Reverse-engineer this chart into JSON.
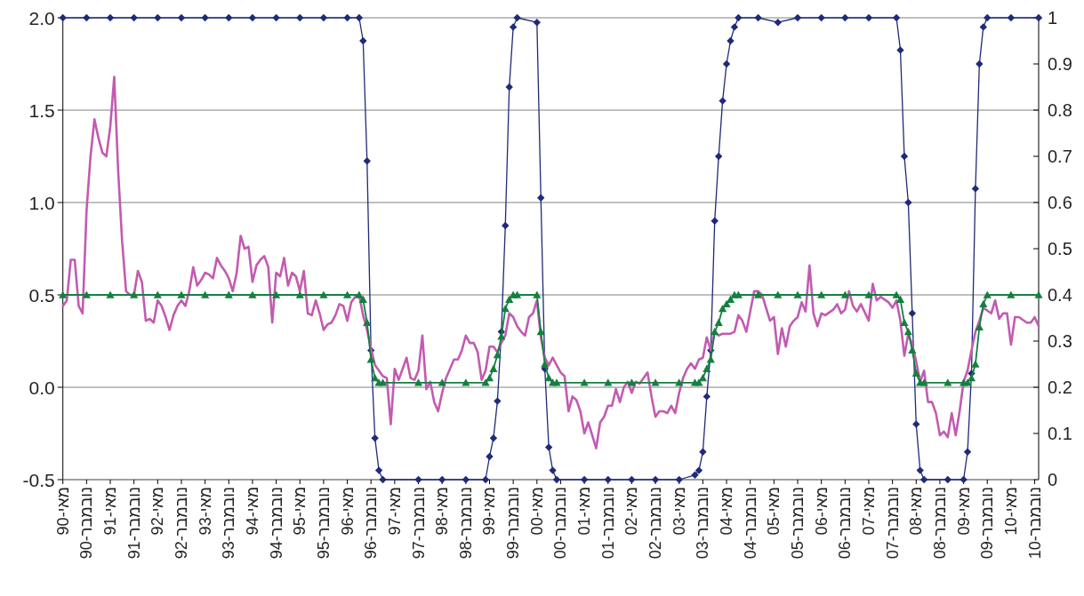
{
  "chart_data": {
    "type": "line",
    "xlim": [
      "1990-05",
      "2010-12"
    ],
    "xticks": [
      {
        "value": "1990-05",
        "label": "מאי-90"
      },
      {
        "value": "1990-11",
        "label": "נובמבר-90"
      },
      {
        "value": "1991-05",
        "label": "מאי-91"
      },
      {
        "value": "1991-11",
        "label": "נובמבר-91"
      },
      {
        "value": "1992-05",
        "label": "מאי-92"
      },
      {
        "value": "1992-11",
        "label": "נובמבר-92"
      },
      {
        "value": "1993-05",
        "label": "מאי-93"
      },
      {
        "value": "1993-11",
        "label": "נובמבר-93"
      },
      {
        "value": "1994-05",
        "label": "מאי-94"
      },
      {
        "value": "1994-11",
        "label": "נובמבר-94"
      },
      {
        "value": "1995-05",
        "label": "מאי-95"
      },
      {
        "value": "1995-11",
        "label": "נובמבר-95"
      },
      {
        "value": "1996-05",
        "label": "מאי-96"
      },
      {
        "value": "1996-11",
        "label": "נובמבר-96"
      },
      {
        "value": "1997-05",
        "label": "מאי-97"
      },
      {
        "value": "1997-11",
        "label": "נובמבר-97"
      },
      {
        "value": "1998-05",
        "label": "מאי-98"
      },
      {
        "value": "1998-11",
        "label": "נובמבר-98"
      },
      {
        "value": "1999-05",
        "label": "מאי-99"
      },
      {
        "value": "1999-11",
        "label": "נובמבר-99"
      },
      {
        "value": "2000-05",
        "label": "מאי-00"
      },
      {
        "value": "2000-11",
        "label": "נובמבר-00"
      },
      {
        "value": "2001-05",
        "label": "מאי-01"
      },
      {
        "value": "2001-11",
        "label": "נובמבר-01"
      },
      {
        "value": "2002-05",
        "label": "מאי-02"
      },
      {
        "value": "2002-11",
        "label": "נובמבר-02"
      },
      {
        "value": "2003-05",
        "label": "מאי-03"
      },
      {
        "value": "2003-11",
        "label": "נובמבר-03"
      },
      {
        "value": "2004-05",
        "label": "מאי-04"
      },
      {
        "value": "2004-11",
        "label": "נובמבר-04"
      },
      {
        "value": "2005-05",
        "label": "מאי-05"
      },
      {
        "value": "2005-11",
        "label": "נובמבר-05"
      },
      {
        "value": "2006-05",
        "label": "מאי-06"
      },
      {
        "value": "2006-11",
        "label": "נובמבר-06"
      },
      {
        "value": "2007-05",
        "label": "מאי-07"
      },
      {
        "value": "2007-11",
        "label": "נובמבר-07"
      },
      {
        "value": "2008-05",
        "label": "מאי-08"
      },
      {
        "value": "2008-11",
        "label": "נובמבר-08"
      },
      {
        "value": "2009-05",
        "label": "מאי-09"
      },
      {
        "value": "2009-11",
        "label": "נובמבר-09"
      },
      {
        "value": "2010-05",
        "label": "מאי-10"
      },
      {
        "value": "2010-11",
        "label": "נובמבר-10"
      }
    ],
    "ylim": [
      -0.5,
      2.0
    ],
    "yticks": [
      {
        "value": -0.5,
        "label": "-0.5"
      },
      {
        "value": 0,
        "label": "0.0"
      },
      0.5,
      {
        "value": 1,
        "label": "1.0"
      },
      1.5,
      {
        "value": 2,
        "label": "2.0"
      }
    ],
    "y2lim": [
      0,
      1
    ],
    "y2ticks": [
      0,
      0.1,
      0.2,
      0.3,
      0.4,
      0.5,
      0.6,
      0.7,
      0.8,
      0.9,
      1
    ],
    "grid": "y",
    "line_style": "solid",
    "series": [
      {
        "color": "#1f2a78",
        "axis": "y2",
        "marker": "diamond",
        "x": [
          "1990-05",
          "1990-11",
          "1991-05",
          "1991-11",
          "1992-05",
          "1992-11",
          "1993-05",
          "1993-11",
          "1994-05",
          "1994-11",
          "1995-05",
          "1995-11",
          "1996-05",
          "1996-08",
          "1996-09",
          "1996-10",
          "1996-11",
          "1996-12",
          "1997-01",
          "1997-02",
          "1997-11",
          "1998-05",
          "1998-11",
          "1999-04",
          "1999-05",
          "1999-06",
          "1999-07",
          "1999-08",
          "1999-09",
          "1999-10",
          "1999-11",
          "1999-12",
          "2000-05",
          "2000-06",
          "2000-07",
          "2000-08",
          "2000-09",
          "2000-10",
          "2001-05",
          "2001-11",
          "2002-05",
          "2002-11",
          "2003-05",
          "2003-09",
          "2003-10",
          "2003-11",
          "2003-12",
          "2004-01",
          "2004-02",
          "2004-03",
          "2004-04",
          "2004-05",
          "2004-06",
          "2004-07",
          "2004-08",
          "2005-01",
          "2005-06",
          "2005-11",
          "2006-05",
          "2006-11",
          "2007-05",
          "2007-12",
          "2008-01",
          "2008-02",
          "2008-03",
          "2008-04",
          "2008-05",
          "2008-06",
          "2008-07",
          "2009-01",
          "2009-05",
          "2009-06",
          "2009-07",
          "2009-08",
          "2009-09",
          "2009-10",
          "2009-11",
          "2010-05",
          "2010-12"
        ],
        "values": [
          1,
          1,
          1,
          1,
          1,
          1,
          1,
          1,
          1,
          1,
          1,
          1,
          1,
          1,
          0.95,
          0.69,
          0.28,
          0.09,
          0.02,
          0,
          0,
          0,
          0,
          0,
          0.05,
          0.09,
          0.17,
          0.32,
          0.55,
          0.85,
          0.98,
          1,
          0.99,
          0.61,
          0.24,
          0.07,
          0.02,
          0,
          0,
          0,
          0,
          0,
          0,
          0.01,
          0.02,
          0.06,
          0.18,
          0.28,
          0.56,
          0.7,
          0.82,
          0.9,
          0.95,
          0.98,
          1,
          1,
          0.99,
          1,
          1,
          1,
          1,
          1,
          0.93,
          0.7,
          0.6,
          0.36,
          0.12,
          0.02,
          0,
          0,
          0,
          0.06,
          0.23,
          0.63,
          0.9,
          0.98,
          1,
          1,
          1
        ]
      },
      {
        "color": "#c25bb0",
        "marker": "none",
        "x": [
          "1990-05",
          "1990-06",
          "1990-07",
          "1990-08",
          "1990-09",
          "1990-10",
          "1990-11",
          "1990-12",
          "1991-01",
          "1991-02",
          "1991-03",
          "1991-04",
          "1991-05",
          "1991-06",
          "1991-07",
          "1991-08",
          "1991-09",
          "1991-10",
          "1991-11",
          "1991-12",
          "1992-01",
          "1992-02",
          "1992-03",
          "1992-04",
          "1992-05",
          "1992-06",
          "1992-07",
          "1992-08",
          "1992-09",
          "1992-10",
          "1992-11",
          "1992-12",
          "1993-01",
          "1993-02",
          "1993-03",
          "1993-04",
          "1993-05",
          "1993-06",
          "1993-07",
          "1993-08",
          "1993-09",
          "1993-10",
          "1993-11",
          "1993-12",
          "1994-01",
          "1994-02",
          "1994-03",
          "1994-04",
          "1994-05",
          "1994-06",
          "1994-07",
          "1994-08",
          "1994-09",
          "1994-10",
          "1994-11",
          "1994-12",
          "1995-01",
          "1995-02",
          "1995-03",
          "1995-04",
          "1995-05",
          "1995-06",
          "1995-07",
          "1995-08",
          "1995-09",
          "1995-10",
          "1995-11",
          "1995-12",
          "1996-01",
          "1996-02",
          "1996-03",
          "1996-04",
          "1996-05",
          "1996-06",
          "1996-07",
          "1996-08",
          "1996-09",
          "1996-10",
          "1996-11",
          "1996-12",
          "1997-01",
          "1997-02",
          "1997-03",
          "1997-04",
          "1997-05",
          "1997-06",
          "1997-07",
          "1997-08",
          "1997-09",
          "1997-10",
          "1997-11",
          "1997-12",
          "1998-01",
          "1998-02",
          "1998-03",
          "1998-04",
          "1998-05",
          "1998-06",
          "1998-07",
          "1998-08",
          "1998-09",
          "1998-10",
          "1998-11",
          "1998-12",
          "1999-01",
          "1999-02",
          "1999-03",
          "1999-04",
          "1999-05",
          "1999-06",
          "1999-07",
          "1999-08",
          "1999-09",
          "1999-10",
          "1999-11",
          "1999-12",
          "2000-01",
          "2000-02",
          "2000-03",
          "2000-04",
          "2000-05",
          "2000-06",
          "2000-07",
          "2000-08",
          "2000-09",
          "2000-10",
          "2000-11",
          "2000-12",
          "2001-01",
          "2001-02",
          "2001-03",
          "2001-04",
          "2001-05",
          "2001-06",
          "2001-07",
          "2001-08",
          "2001-09",
          "2001-10",
          "2001-11",
          "2001-12",
          "2002-01",
          "2002-02",
          "2002-03",
          "2002-04",
          "2002-05",
          "2002-06",
          "2002-07",
          "2002-08",
          "2002-09",
          "2002-10",
          "2002-11",
          "2002-12",
          "2003-01",
          "2003-02",
          "2003-03",
          "2003-04",
          "2003-05",
          "2003-06",
          "2003-07",
          "2003-08",
          "2003-09",
          "2003-10",
          "2003-11",
          "2003-12",
          "2004-01",
          "2004-02",
          "2004-03",
          "2004-04",
          "2004-05",
          "2004-06",
          "2004-07",
          "2004-08",
          "2004-09",
          "2004-10",
          "2004-12",
          "2005-01",
          "2005-02",
          "2005-04",
          "2005-05",
          "2005-06",
          "2005-07",
          "2005-08",
          "2005-09",
          "2005-10",
          "2005-11",
          "2005-12",
          "2006-01",
          "2006-02",
          "2006-03",
          "2006-04",
          "2006-05",
          "2006-06",
          "2006-08",
          "2006-09",
          "2006-10",
          "2006-11",
          "2006-12",
          "2007-01",
          "2007-02",
          "2007-03",
          "2007-05",
          "2007-06",
          "2007-07",
          "2007-08",
          "2007-10",
          "2007-11",
          "2007-12",
          "2008-01",
          "2008-02",
          "2008-03",
          "2008-04",
          "2008-05",
          "2008-06",
          "2008-07",
          "2008-08",
          "2008-09",
          "2008-10",
          "2008-11",
          "2008-12",
          "2009-01",
          "2009-02",
          "2009-03",
          "2009-04",
          "2009-05",
          "2009-06",
          "2009-07",
          "2009-08",
          "2009-09",
          "2009-10",
          "2009-12",
          "2010-01",
          "2010-02",
          "2010-03",
          "2010-04",
          "2010-05",
          "2010-06",
          "2010-07",
          "2010-09",
          "2010-10",
          "2010-11",
          "2010-12"
        ],
        "values": [
          0.44,
          0.47,
          0.69,
          0.69,
          0.44,
          0.4,
          0.96,
          1.25,
          1.45,
          1.35,
          1.27,
          1.25,
          1.41,
          1.68,
          1.17,
          0.79,
          0.52,
          0.5,
          0.5,
          0.63,
          0.57,
          0.36,
          0.37,
          0.35,
          0.47,
          0.44,
          0.38,
          0.31,
          0.39,
          0.44,
          0.47,
          0.44,
          0.52,
          0.65,
          0.55,
          0.58,
          0.62,
          0.61,
          0.59,
          0.7,
          0.66,
          0.63,
          0.59,
          0.52,
          0.62,
          0.82,
          0.75,
          0.76,
          0.57,
          0.66,
          0.69,
          0.71,
          0.65,
          0.35,
          0.62,
          0.6,
          0.7,
          0.55,
          0.62,
          0.6,
          0.52,
          0.63,
          0.4,
          0.39,
          0.47,
          0.4,
          0.31,
          0.34,
          0.35,
          0.39,
          0.45,
          0.44,
          0.36,
          0.46,
          0.49,
          0.5,
          0.39,
          0.31,
          0.21,
          0.12,
          0.09,
          0.06,
          0.05,
          -0.2,
          0.1,
          0.04,
          0.1,
          0.16,
          0.05,
          0.04,
          0.09,
          0.28,
          -0.01,
          0.03,
          -0.08,
          -0.13,
          -0.03,
          0.05,
          0.1,
          0.15,
          0.15,
          0.2,
          0.28,
          0.24,
          0.24,
          0.19,
          0.04,
          0.09,
          0.22,
          0.22,
          0.19,
          0.24,
          0.28,
          0.4,
          0.38,
          0.33,
          0.3,
          0.28,
          0.38,
          0.4,
          0.47,
          0.27,
          0.16,
          0.12,
          0.16,
          0.12,
          0.08,
          0.06,
          -0.13,
          -0.05,
          -0.07,
          -0.13,
          -0.25,
          -0.19,
          -0.26,
          -0.33,
          -0.19,
          -0.16,
          -0.1,
          -0.1,
          -0.01,
          -0.08,
          0.0,
          0.03,
          -0.03,
          0.03,
          0.02,
          0.05,
          0.08,
          -0.05,
          -0.16,
          -0.13,
          -0.13,
          -0.14,
          -0.1,
          -0.14,
          -0.03,
          0.05,
          0.1,
          0.13,
          0.1,
          0.15,
          0.16,
          0.27,
          0.2,
          0.3,
          0.28,
          0.29,
          0.29,
          0.29,
          0.3,
          0.39,
          0.36,
          0.3,
          0.52,
          0.52,
          0.5,
          0.36,
          0.38,
          0.18,
          0.32,
          0.22,
          0.33,
          0.36,
          0.38,
          0.46,
          0.41,
          0.66,
          0.4,
          0.33,
          0.4,
          0.39,
          0.42,
          0.45,
          0.4,
          0.42,
          0.52,
          0.44,
          0.41,
          0.45,
          0.36,
          0.56,
          0.47,
          0.49,
          0.46,
          0.43,
          0.47,
          0.36,
          0.17,
          0.29,
          0.23,
          0.14,
          0.03,
          0.09,
          -0.08,
          -0.08,
          -0.14,
          -0.26,
          -0.24,
          -0.27,
          -0.14,
          -0.26,
          -0.13,
          0.03,
          0.09,
          0.2,
          0.3,
          0.36,
          0.43,
          0.4,
          0.47,
          0.37,
          0.4,
          0.4,
          0.23,
          0.38,
          0.38,
          0.35,
          0.35,
          0.38,
          0.33
        ]
      },
      {
        "color": "#13803f",
        "axis": "y2",
        "marker": "triangle",
        "x": [
          "1990-05",
          "1990-11",
          "1991-05",
          "1991-11",
          "1992-05",
          "1992-11",
          "1993-05",
          "1993-11",
          "1994-05",
          "1994-11",
          "1995-05",
          "1995-11",
          "1996-05",
          "1996-08",
          "1996-09",
          "1996-10",
          "1996-11",
          "1996-12",
          "1997-01",
          "1997-02",
          "1997-11",
          "1998-05",
          "1998-11",
          "1999-04",
          "1999-05",
          "1999-06",
          "1999-07",
          "1999-08",
          "1999-09",
          "1999-10",
          "1999-11",
          "1999-12",
          "2000-05",
          "2000-06",
          "2000-07",
          "2000-08",
          "2000-09",
          "2000-10",
          "2001-05",
          "2001-11",
          "2002-05",
          "2002-11",
          "2003-05",
          "2003-09",
          "2003-10",
          "2003-11",
          "2003-12",
          "2004-01",
          "2004-02",
          "2004-03",
          "2004-04",
          "2004-05",
          "2004-06",
          "2004-07",
          "2004-08",
          "2005-01",
          "2005-06",
          "2005-11",
          "2006-05",
          "2006-11",
          "2007-05",
          "2007-12",
          "2008-01",
          "2008-02",
          "2008-03",
          "2008-04",
          "2008-05",
          "2008-06",
          "2008-07",
          "2009-01",
          "2009-05",
          "2009-06",
          "2009-07",
          "2009-08",
          "2009-09",
          "2009-10",
          "2009-11",
          "2010-05",
          "2010-12"
        ],
        "values": [
          0.4,
          0.4,
          0.4,
          0.4,
          0.4,
          0.4,
          0.4,
          0.4,
          0.4,
          0.4,
          0.4,
          0.4,
          0.4,
          0.4,
          0.39,
          0.34,
          0.26,
          0.22,
          0.21,
          0.21,
          0.21,
          0.21,
          0.21,
          0.21,
          0.22,
          0.24,
          0.27,
          0.31,
          0.37,
          0.39,
          0.4,
          0.4,
          0.4,
          0.32,
          0.25,
          0.22,
          0.21,
          0.21,
          0.21,
          0.21,
          0.21,
          0.21,
          0.21,
          0.21,
          0.21,
          0.22,
          0.24,
          0.26,
          0.32,
          0.34,
          0.37,
          0.38,
          0.39,
          0.4,
          0.4,
          0.4,
          0.4,
          0.4,
          0.4,
          0.4,
          0.4,
          0.4,
          0.39,
          0.34,
          0.32,
          0.28,
          0.23,
          0.21,
          0.21,
          0.21,
          0.21,
          0.21,
          0.22,
          0.25,
          0.33,
          0.38,
          0.4,
          0.4,
          0.4
        ]
      }
    ]
  }
}
